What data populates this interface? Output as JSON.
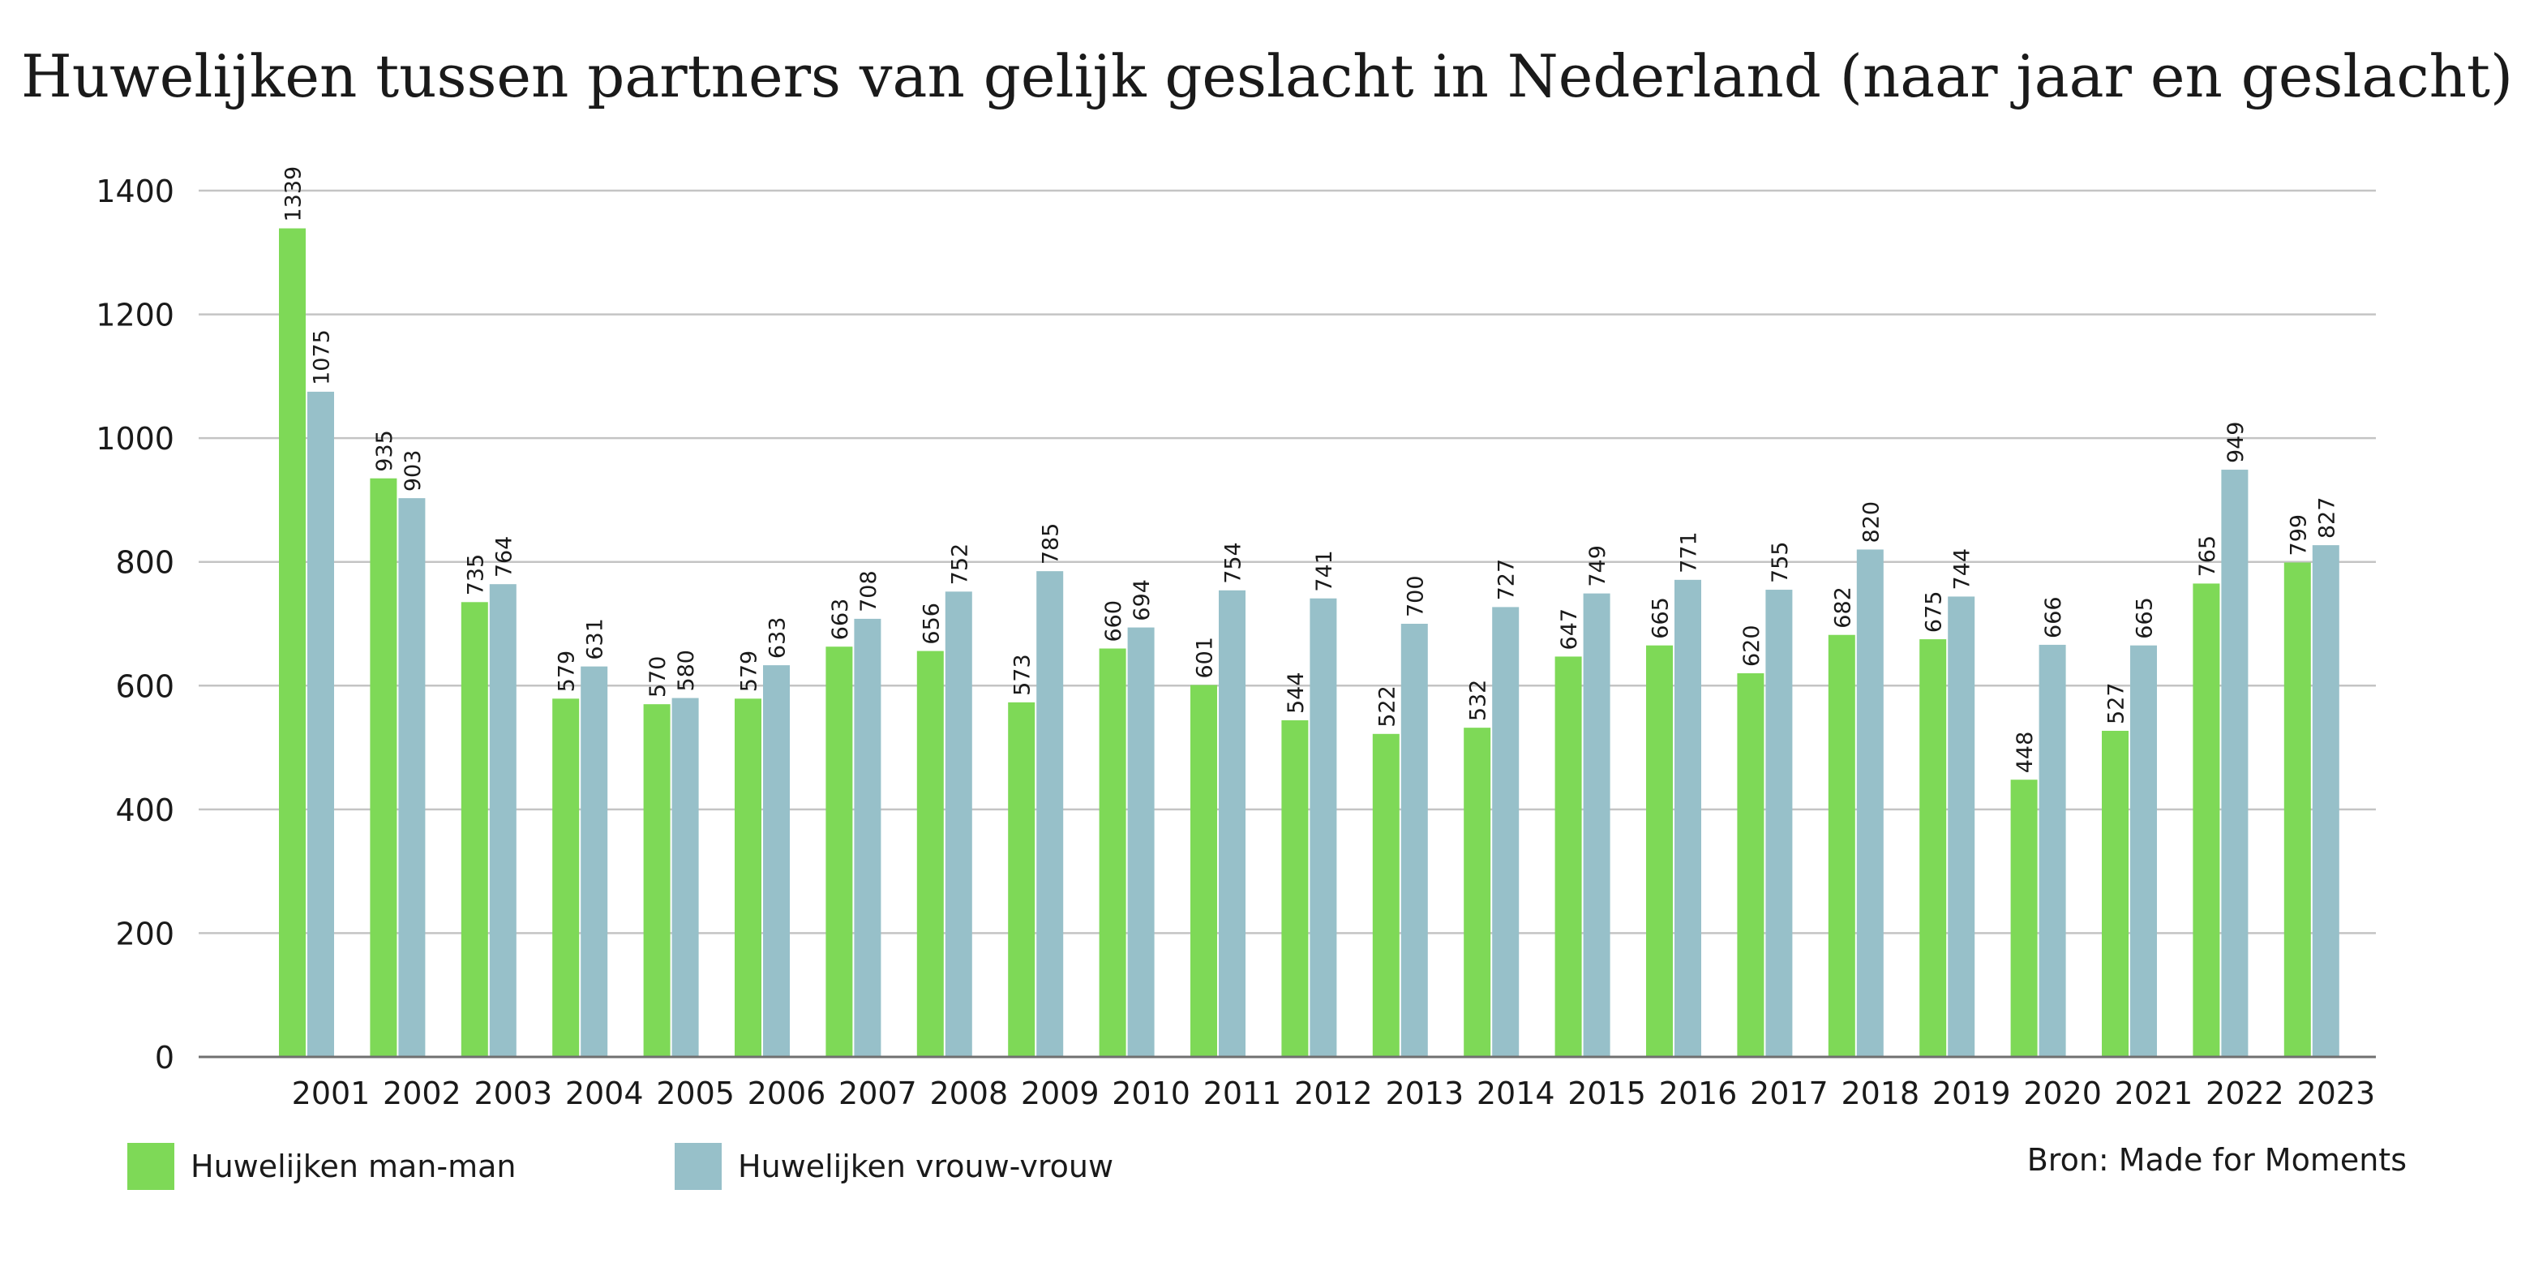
{
  "chart_data": {
    "type": "bar",
    "title": "Huwelijken tussen partners van gelijk geslacht in Nederland (naar jaar en geslacht)",
    "categories": [
      "2001",
      "2002",
      "2003",
      "2004",
      "2005",
      "2006",
      "2007",
      "2008",
      "2009",
      "2010",
      "2011",
      "2012",
      "2013",
      "2014",
      "2015",
      "2016",
      "2017",
      "2018",
      "2019",
      "2020",
      "2021",
      "2022",
      "2023"
    ],
    "series": [
      {
        "name": "Huwelijken man-man",
        "color": "#7ed957",
        "values": [
          1339,
          935,
          735,
          579,
          570,
          579,
          663,
          656,
          573,
          660,
          601,
          544,
          522,
          532,
          647,
          665,
          620,
          682,
          675,
          448,
          527,
          765,
          799
        ]
      },
      {
        "name": "Huwelijken vrouw-vrouw",
        "color": "#97c0c9",
        "values": [
          1075,
          903,
          764,
          631,
          580,
          633,
          708,
          752,
          785,
          694,
          754,
          741,
          700,
          727,
          749,
          771,
          755,
          820,
          744,
          666,
          665,
          949,
          827
        ]
      }
    ],
    "ylim": [
      0,
      1400
    ],
    "yticks": [
      0,
      200,
      400,
      600,
      800,
      1000,
      1200,
      1400
    ],
    "xlabel": "",
    "ylabel": "",
    "grid": true,
    "legend_position": "bottom-left",
    "data_labels": true,
    "source": "Bron: Made for Moments"
  }
}
